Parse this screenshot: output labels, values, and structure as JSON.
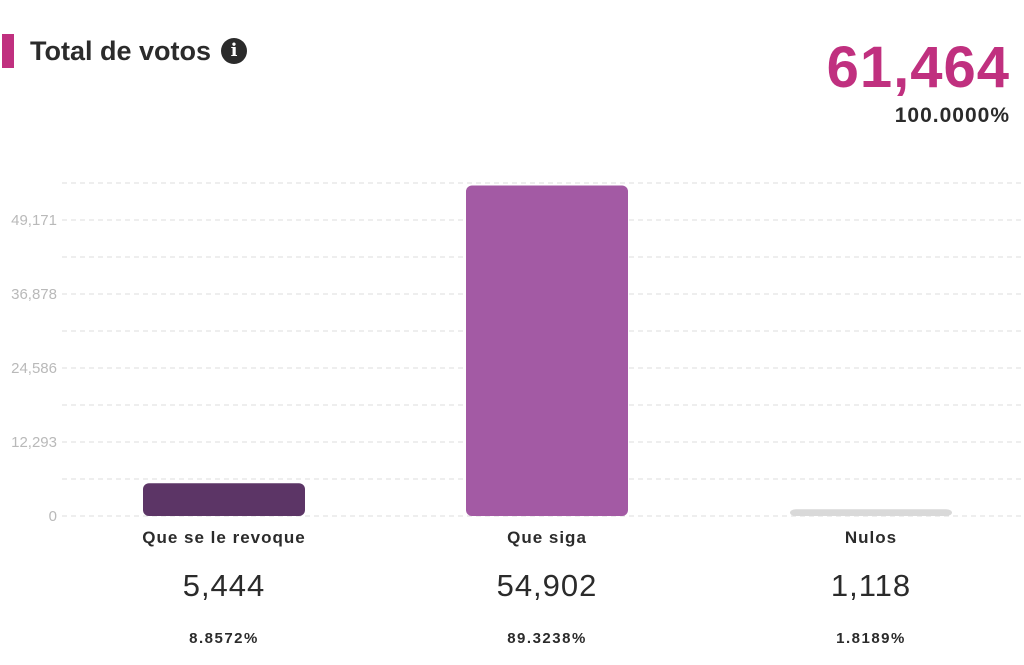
{
  "header": {
    "title": "Total de votos",
    "info_icon": "info-icon",
    "accent_color": "#c0307f"
  },
  "summary": {
    "total": "61,464",
    "percent": "100.0000%"
  },
  "chart_data": {
    "type": "bar",
    "categories": [
      "Que se le revoque",
      "Que siga",
      "Nulos"
    ],
    "values": [
      5444,
      54902,
      1118
    ],
    "value_labels": [
      "5,444",
      "54,902",
      "1,118"
    ],
    "percent_labels": [
      "8.8572%",
      "89.3238%",
      "1.8189%"
    ],
    "colors": [
      "#5c3566",
      "#a35aa4",
      "#d9d9d9"
    ],
    "yticks": [
      0,
      12293,
      24586,
      36878,
      49171
    ],
    "ytick_labels": [
      "0",
      "12,293",
      "24,586",
      "36,878",
      "49,171"
    ],
    "ylim": [
      0,
      55000
    ],
    "grid": true
  }
}
